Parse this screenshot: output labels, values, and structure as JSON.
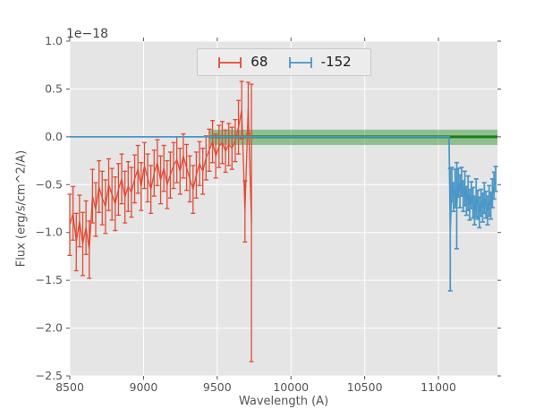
{
  "figure": {
    "background": "#ffffff",
    "plot_background": "#e5e5e5",
    "grid_color": "#ffffff",
    "tick_color": "#555555",
    "text_color": "#555555"
  },
  "chart_data": {
    "type": "line",
    "subtype": "errorbar",
    "title": "",
    "xlabel": "Wavelength (A)",
    "ylabel": "Flux (erg/s/cm^2/A)",
    "offset_text": "1e−18",
    "xlim": [
      8500,
      11400
    ],
    "ylim": [
      -2.5,
      1.0
    ],
    "xtick_values": [
      8500,
      9000,
      9500,
      10000,
      10500,
      11000
    ],
    "xtick_labels": [
      "8500",
      "9000",
      "9500",
      "10000",
      "10500",
      "11000"
    ],
    "ytick_values": [
      1.0,
      0.5,
      0.0,
      -0.5,
      -1.0,
      -1.5,
      -2.0,
      -2.5
    ],
    "ytick_labels": [
      "1.0",
      "0.5",
      "0.0",
      "−0.5",
      "−1.0",
      "−1.5",
      "−2.0",
      "−2.5"
    ],
    "grid": true,
    "legend": {
      "position": "upper center",
      "entries": [
        {
          "label": "68",
          "color": "#e24a33"
        },
        {
          "label": "-152",
          "color": "#4a96c6"
        }
      ]
    },
    "band": {
      "x0": 9450,
      "x1": 11400,
      "y0": -0.085,
      "y1": 0.075,
      "fill_color": "#008000",
      "alpha": 0.38,
      "center_line_y": 0,
      "center_line_color": "#2c7a2c"
    },
    "series": [
      {
        "name": "68",
        "color": "#e24a33",
        "x": [
          8500,
          8522,
          8544,
          8566,
          8588,
          8610,
          8632,
          8654,
          8676,
          8698,
          8720,
          8742,
          8764,
          8786,
          8808,
          8830,
          8852,
          8874,
          8896,
          8918,
          8940,
          8962,
          8984,
          9006,
          9028,
          9050,
          9072,
          9094,
          9116,
          9138,
          9160,
          9182,
          9204,
          9226,
          9248,
          9270,
          9292,
          9314,
          9336,
          9358,
          9380,
          9402,
          9424,
          9446,
          9468,
          9490,
          9512,
          9534,
          9556,
          9578,
          9600,
          9622,
          9644,
          9666,
          9688,
          9710,
          9732
        ],
        "y": [
          -0.92,
          -0.8,
          -1.1,
          -0.88,
          -1.12,
          -0.95,
          -1.18,
          -0.62,
          -0.76,
          -0.52,
          -0.64,
          -0.73,
          -0.5,
          -0.6,
          -0.7,
          -0.55,
          -0.44,
          -0.63,
          -0.52,
          -0.58,
          -0.44,
          -0.34,
          -0.52,
          -0.3,
          -0.43,
          -0.55,
          -0.38,
          -0.27,
          -0.45,
          -0.33,
          -0.5,
          -0.4,
          -0.3,
          -0.24,
          -0.36,
          -0.2,
          -0.32,
          -0.44,
          -0.55,
          -0.4,
          -0.28,
          -0.36,
          -0.22,
          -0.14,
          -0.05,
          -0.2,
          -0.1,
          -0.06,
          -0.15,
          -0.08,
          -0.12,
          -0.04,
          0.1,
          0.28,
          -0.78,
          0.3,
          -0.9
        ],
        "yerr": [
          0.32,
          0.28,
          0.3,
          0.27,
          0.33,
          0.28,
          0.3,
          0.28,
          0.28,
          0.27,
          0.28,
          0.28,
          0.27,
          0.27,
          0.28,
          0.27,
          0.26,
          0.27,
          0.26,
          0.26,
          0.25,
          0.25,
          0.25,
          0.24,
          0.25,
          0.25,
          0.24,
          0.24,
          0.25,
          0.24,
          0.25,
          0.24,
          0.24,
          0.24,
          0.24,
          0.23,
          0.24,
          0.24,
          0.25,
          0.24,
          0.23,
          0.24,
          0.23,
          0.22,
          0.22,
          0.23,
          0.22,
          0.22,
          0.22,
          0.22,
          0.22,
          0.22,
          0.28,
          0.3,
          0.32,
          0.27,
          1.45
        ]
      },
      {
        "name": "-152",
        "color": "#4a96c6",
        "x": [
          8500,
          11072,
          11080,
          11091,
          11102,
          11113,
          11124,
          11135,
          11146,
          11157,
          11168,
          11179,
          11190,
          11201,
          11212,
          11223,
          11234,
          11245,
          11256,
          11267,
          11278,
          11289,
          11300,
          11311,
          11322,
          11333,
          11344,
          11355,
          11366,
          11377,
          11388
        ],
        "y": [
          0,
          0,
          -0.97,
          -0.5,
          -0.63,
          -0.54,
          -0.72,
          -0.48,
          -0.57,
          -0.47,
          -0.62,
          -0.54,
          -0.67,
          -0.59,
          -0.71,
          -0.61,
          -0.69,
          -0.77,
          -0.64,
          -0.71,
          -0.79,
          -0.69,
          -0.74,
          -0.64,
          -0.71,
          -0.77,
          -0.67,
          -0.72,
          -0.59,
          -0.51,
          -0.44
        ],
        "yerr": [
          0,
          0,
          0.64,
          0.18,
          0.15,
          0.2,
          0.45,
          0.15,
          0.17,
          0.15,
          0.16,
          0.18,
          0.15,
          0.18,
          0.16,
          0.14,
          0.16,
          0.15,
          0.2,
          0.15,
          0.16,
          0.14,
          0.15,
          0.16,
          0.14,
          0.15,
          0.16,
          0.14,
          0.15,
          0.14,
          0.13
        ]
      }
    ]
  }
}
